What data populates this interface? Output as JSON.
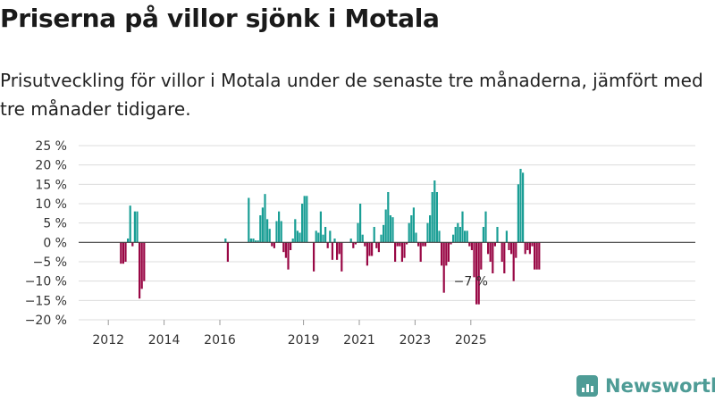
{
  "header": {
    "title": "Priserna på villor sjönk i Motala",
    "subtitle": "Prisutveckling för villor i Motala under de senaste tre månaderna, jämfört med tre månader tidigare."
  },
  "branding": {
    "name": "Newsworthy",
    "icon": "bar-chart-logo-icon",
    "color": "#4e9c96"
  },
  "chart_data": {
    "type": "bar",
    "title": "Priserna på villor sjönk i Motala",
    "subtitle": "Prisutveckling för villor i Motala under de senaste tre månaderna, jämfört med tre månader tidigare.",
    "xlabel": "",
    "ylabel": "",
    "x_start": "2011-01",
    "bar_months": 1,
    "ylim": [
      -20,
      25
    ],
    "yticks": [
      25,
      20,
      15,
      10,
      5,
      0,
      -5,
      -10,
      -15,
      -20
    ],
    "ytick_labels": [
      "25 %",
      "20 %",
      "15 %",
      "10 %",
      "5 %",
      "0 %",
      "−5 %",
      "−10 %",
      "−15 %",
      "−20 %"
    ],
    "xticks": [
      {
        "label": "2012",
        "date": "2012-01"
      },
      {
        "label": "2014",
        "date": "2014-01"
      },
      {
        "label": "2016",
        "date": "2016-01"
      },
      {
        "label": "2019",
        "date": "2019-01"
      },
      {
        "label": "2021",
        "date": "2021-01"
      },
      {
        "label": "2023",
        "date": "2023-01"
      },
      {
        "label": "2025",
        "date": "2025-01"
      }
    ],
    "grid": true,
    "legend": "none",
    "colors": {
      "positive": "#1a9e95",
      "negative": "#990845"
    },
    "annotation": {
      "text": "−7 %",
      "date": "2025-01"
    },
    "values": [
      null,
      null,
      null,
      null,
      null,
      null,
      null,
      null,
      null,
      null,
      null,
      null,
      null,
      null,
      null,
      null,
      null,
      -5.5,
      -5.5,
      -5,
      1,
      9.5,
      -1,
      8,
      8,
      -14.5,
      -12,
      -10,
      null,
      null,
      null,
      null,
      null,
      null,
      null,
      null,
      null,
      null,
      null,
      null,
      null,
      null,
      null,
      null,
      null,
      null,
      null,
      null,
      null,
      null,
      null,
      null,
      null,
      null,
      null,
      null,
      null,
      null,
      null,
      null,
      null,
      null,
      1,
      -5,
      null,
      null,
      null,
      null,
      null,
      null,
      null,
      null,
      11.5,
      1,
      1,
      0.5,
      0.5,
      7,
      9,
      12.5,
      6,
      3.5,
      -1,
      -1.5,
      5.5,
      8,
      5.5,
      -2.5,
      -4,
      -7,
      -2,
      1,
      6,
      3,
      2.5,
      10,
      12,
      12,
      null,
      null,
      -7.5,
      3,
      2.5,
      8,
      2,
      4,
      -1.5,
      3,
      -4.5,
      1,
      -4.5,
      -3,
      -7.5,
      null,
      null,
      null,
      1,
      -1.5,
      -0.5,
      5,
      10,
      2,
      -1,
      -6,
      -3.5,
      -3.5,
      4,
      -1.5,
      -2.5,
      2,
      4.5,
      8.5,
      13,
      7,
      6.5,
      -5,
      -1,
      -1,
      -5,
      -4,
      -0.5,
      5,
      7,
      9,
      2.5,
      -1,
      -5,
      -1,
      -1,
      5,
      7,
      13,
      16,
      13,
      3,
      -6,
      -13,
      -6,
      -5,
      -0.5,
      2,
      4,
      5,
      4,
      8,
      3,
      3,
      -1,
      -2,
      -9,
      -16,
      -16,
      -7,
      4,
      8,
      -3,
      -5,
      -8,
      -1,
      4,
      null,
      -5,
      -8,
      3,
      -2,
      -3,
      -10,
      -4,
      15,
      19,
      18,
      -3,
      -2,
      -3,
      -1,
      -7,
      -7,
      -7
    ]
  }
}
